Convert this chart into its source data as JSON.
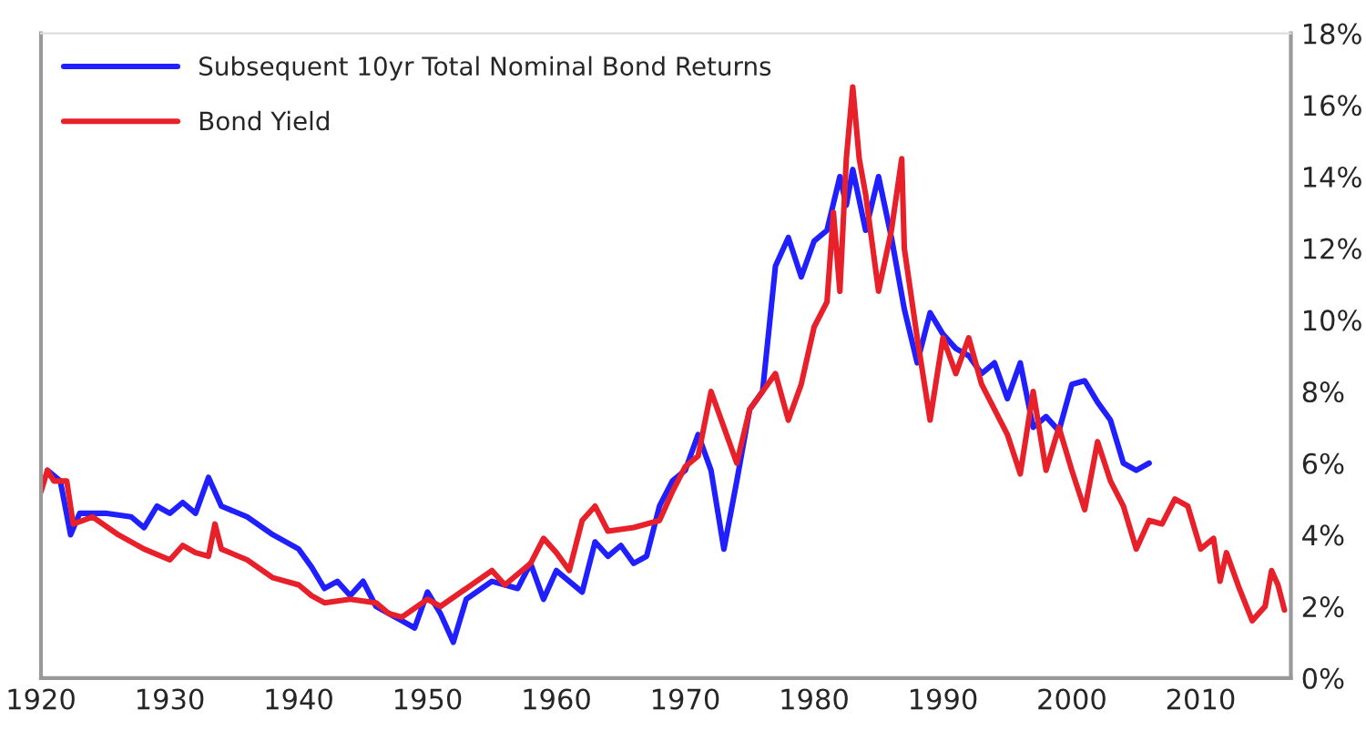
{
  "chart_data": {
    "type": "line",
    "xlim": [
      1920,
      2017
    ],
    "xticks": [
      1920,
      1930,
      1940,
      1950,
      1960,
      1970,
      1980,
      1990,
      2000,
      2010
    ],
    "ylim": [
      0,
      18
    ],
    "yticks": [
      {
        "value": 0,
        "label": "0%"
      },
      {
        "value": 2,
        "label": "2%"
      },
      {
        "value": 4,
        "label": "4%"
      },
      {
        "value": 6,
        "label": "6%"
      },
      {
        "value": 8,
        "label": "8%"
      },
      {
        "value": 10,
        "label": "10%"
      },
      {
        "value": 12,
        "label": "12%"
      },
      {
        "value": 14,
        "label": "14%"
      },
      {
        "value": 16,
        "label": "16%"
      },
      {
        "value": 18,
        "label": "18%"
      }
    ],
    "grid": false,
    "legend": "top left",
    "series": [
      {
        "name": "Subsequent 10yr Total Nominal Bond Returns",
        "color": "#1f1fff",
        "x": [
          1920.5,
          1921.5,
          1922.3,
          1923,
          1925,
          1927,
          1928,
          1929,
          1930,
          1931,
          1932,
          1933,
          1934,
          1936,
          1938,
          1940,
          1941,
          1942,
          1943,
          1944,
          1945,
          1946,
          1947,
          1948,
          1949,
          1950,
          1951,
          1952,
          1953,
          1955,
          1957,
          1958,
          1959,
          1960,
          1961,
          1962,
          1963,
          1964,
          1965,
          1966,
          1967,
          1968,
          1969,
          1970,
          1971,
          1972,
          1973,
          1974,
          1975,
          1976,
          1977,
          1978,
          1979,
          1980,
          1981,
          1982,
          1982.5,
          1983,
          1984,
          1985,
          1986,
          1987,
          1988,
          1989,
          1990,
          1991,
          1992,
          1993,
          1994,
          1995,
          1996,
          1997,
          1998,
          1999,
          2000,
          2001,
          2002,
          2003,
          2004,
          2005,
          2006
        ],
        "values": [
          5.8,
          5.5,
          4.0,
          4.6,
          4.6,
          4.5,
          4.2,
          4.8,
          4.6,
          4.9,
          4.6,
          5.6,
          4.8,
          4.5,
          4.0,
          3.6,
          3.1,
          2.5,
          2.7,
          2.3,
          2.7,
          2.0,
          1.8,
          1.6,
          1.4,
          2.4,
          1.8,
          1.0,
          2.2,
          2.7,
          2.5,
          3.2,
          2.2,
          3.0,
          2.7,
          2.4,
          3.8,
          3.4,
          3.7,
          3.2,
          3.4,
          4.8,
          5.5,
          5.8,
          6.8,
          5.8,
          3.6,
          5.5,
          7.5,
          8.0,
          11.5,
          12.3,
          11.2,
          12.2,
          12.5,
          14.0,
          13.2,
          14.2,
          12.5,
          14.0,
          12.3,
          10.3,
          8.8,
          10.2,
          9.6,
          9.2,
          9.0,
          8.5,
          8.8,
          7.8,
          8.8,
          7.0,
          7.3,
          6.9,
          8.2,
          8.3,
          7.7,
          7.2,
          6.0,
          5.8,
          6.0
        ]
      },
      {
        "name": "Bond Yield",
        "color": "#e8202a",
        "x": [
          1920,
          1920.5,
          1921,
          1922,
          1922.5,
          1924,
          1926,
          1928,
          1930,
          1931,
          1932,
          1933,
          1933.5,
          1934,
          1936,
          1938,
          1940,
          1941,
          1942,
          1944,
          1946,
          1947,
          1948,
          1950,
          1951,
          1953,
          1955,
          1956,
          1958,
          1959,
          1960,
          1961,
          1962,
          1963,
          1964,
          1966,
          1968,
          1969,
          1970,
          1971,
          1972,
          1973,
          1974,
          1975,
          1976,
          1977,
          1978,
          1979,
          1980,
          1981,
          1981.5,
          1982,
          1982.5,
          1983,
          1983.5,
          1984,
          1985,
          1986,
          1986.8,
          1987,
          1988,
          1989,
          1990,
          1991,
          1992,
          1993,
          1995,
          1996,
          1997,
          1998,
          1999,
          2000,
          2001,
          2002,
          2003,
          2004,
          2005,
          2006,
          2007,
          2008,
          2009,
          2010,
          2011,
          2011.5,
          2012,
          2013,
          2014,
          2015,
          2015.5,
          2016,
          2016.5
        ],
        "values": [
          5.2,
          5.8,
          5.5,
          5.5,
          4.3,
          4.5,
          4.0,
          3.6,
          3.3,
          3.7,
          3.5,
          3.4,
          4.3,
          3.6,
          3.3,
          2.8,
          2.6,
          2.3,
          2.1,
          2.2,
          2.1,
          1.8,
          1.7,
          2.2,
          2.0,
          2.5,
          3.0,
          2.6,
          3.2,
          3.9,
          3.5,
          3.0,
          4.4,
          4.8,
          4.1,
          4.2,
          4.4,
          5.2,
          5.9,
          6.2,
          8.0,
          7.0,
          6.0,
          7.5,
          8.0,
          8.5,
          7.2,
          8.2,
          9.8,
          10.5,
          13.0,
          10.8,
          14.5,
          16.5,
          14.5,
          13.5,
          10.8,
          12.5,
          14.5,
          12.0,
          9.5,
          7.2,
          9.5,
          8.5,
          9.5,
          8.2,
          6.8,
          5.7,
          8.0,
          5.8,
          7.0,
          5.8,
          4.7,
          6.6,
          5.5,
          4.8,
          3.6,
          4.4,
          4.3,
          5.0,
          4.8,
          3.6,
          3.9,
          2.7,
          3.5,
          2.5,
          1.6,
          2.0,
          3.0,
          2.6,
          1.9
        ]
      }
    ]
  }
}
